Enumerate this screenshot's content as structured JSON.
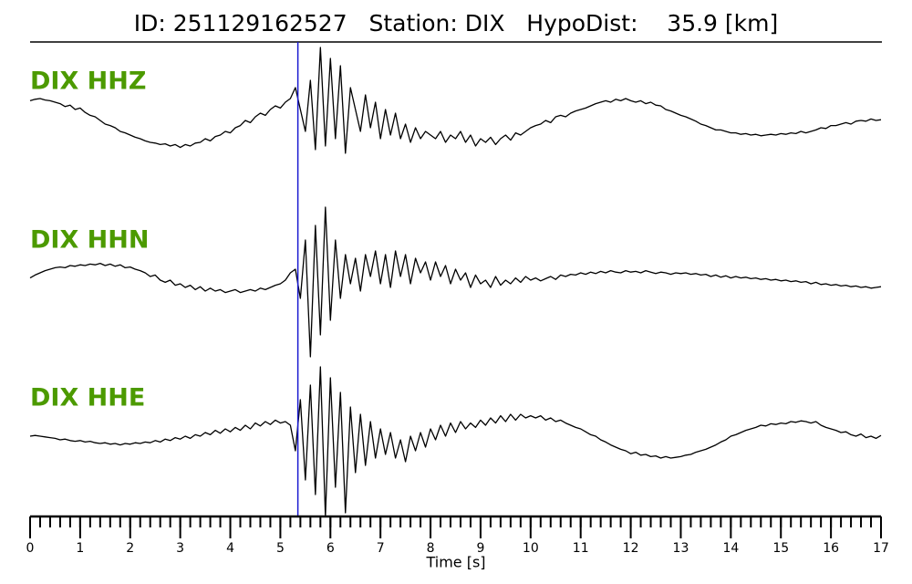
{
  "chart_data": {
    "type": "line",
    "title": "ID: 251129162527   Station: DIX   HypoDist:    35.9 [km]",
    "xlabel": "Time [s]",
    "xlim": [
      0,
      17
    ],
    "xticks": [
      0,
      1,
      2,
      3,
      4,
      5,
      6,
      7,
      8,
      9,
      10,
      11,
      12,
      13,
      14,
      15,
      16,
      17
    ],
    "xminor": 0.2,
    "ylim": [
      -1.2,
      1.2
    ],
    "label_color": "#4c9a00",
    "picks": [
      {
        "x": 5.35,
        "color": "#1a1ad0"
      }
    ],
    "x": [
      0,
      0.1,
      0.2,
      0.3,
      0.4,
      0.5,
      0.6,
      0.7,
      0.8,
      0.9,
      1,
      1.1,
      1.2,
      1.3,
      1.4,
      1.5,
      1.6,
      1.7,
      1.8,
      1.9,
      2,
      2.1,
      2.2,
      2.3,
      2.4,
      2.5,
      2.6,
      2.7,
      2.8,
      2.9,
      3,
      3.1,
      3.2,
      3.3,
      3.4,
      3.5,
      3.6,
      3.7,
      3.8,
      3.9,
      4,
      4.1,
      4.2,
      4.3,
      4.4,
      4.5,
      4.6,
      4.7,
      4.8,
      4.9,
      5,
      5.1,
      5.2,
      5.3,
      5.4,
      5.5,
      5.6,
      5.7,
      5.8,
      5.9,
      6,
      6.1,
      6.2,
      6.3,
      6.4,
      6.5,
      6.6,
      6.7,
      6.8,
      6.9,
      7,
      7.1,
      7.2,
      7.3,
      7.4,
      7.5,
      7.6,
      7.7,
      7.8,
      7.9,
      8,
      8.1,
      8.2,
      8.3,
      8.4,
      8.5,
      8.6,
      8.7,
      8.8,
      8.9,
      9,
      9.1,
      9.2,
      9.3,
      9.4,
      9.5,
      9.6,
      9.7,
      9.8,
      9.9,
      10,
      10.1,
      10.2,
      10.3,
      10.4,
      10.5,
      10.6,
      10.7,
      10.8,
      10.9,
      11,
      11.1,
      11.2,
      11.3,
      11.4,
      11.5,
      11.6,
      11.7,
      11.8,
      11.9,
      12,
      12.1,
      12.2,
      12.3,
      12.4,
      12.5,
      12.6,
      12.7,
      12.8,
      12.9,
      13,
      13.1,
      13.2,
      13.3,
      13.4,
      13.5,
      13.6,
      13.7,
      13.8,
      13.9,
      14,
      14.1,
      14.2,
      14.3,
      14.4,
      14.5,
      14.6,
      14.7,
      14.8,
      14.9,
      15,
      15.1,
      15.2,
      15.3,
      15.4,
      15.5,
      15.6,
      15.7,
      15.8,
      15.9,
      16,
      16.1,
      16.2,
      16.3,
      16.4,
      16.5,
      16.6,
      16.7,
      16.8,
      16.9,
      17
    ],
    "series": [
      {
        "name": "DIX HHZ",
        "color": "#000000",
        "values": [
          0.22,
          0.24,
          0.25,
          0.23,
          0.22,
          0.2,
          0.18,
          0.14,
          0.16,
          0.1,
          0.12,
          0.06,
          0.02,
          0.0,
          -0.05,
          -0.1,
          -0.12,
          -0.15,
          -0.2,
          -0.22,
          -0.25,
          -0.28,
          -0.3,
          -0.33,
          -0.35,
          -0.36,
          -0.38,
          -0.37,
          -0.4,
          -0.38,
          -0.42,
          -0.38,
          -0.4,
          -0.36,
          -0.35,
          -0.3,
          -0.33,
          -0.27,
          -0.25,
          -0.2,
          -0.22,
          -0.15,
          -0.12,
          -0.05,
          -0.08,
          0.0,
          0.05,
          0.02,
          0.1,
          0.15,
          0.12,
          0.2,
          0.25,
          0.4,
          0.1,
          -0.2,
          0.5,
          -0.45,
          0.95,
          -0.4,
          0.8,
          -0.3,
          0.7,
          -0.5,
          0.4,
          0.1,
          -0.2,
          0.3,
          -0.15,
          0.2,
          -0.3,
          0.1,
          -0.25,
          0.05,
          -0.3,
          -0.1,
          -0.35,
          -0.15,
          -0.3,
          -0.2,
          -0.25,
          -0.3,
          -0.2,
          -0.35,
          -0.25,
          -0.3,
          -0.2,
          -0.35,
          -0.25,
          -0.4,
          -0.3,
          -0.35,
          -0.28,
          -0.38,
          -0.3,
          -0.25,
          -0.32,
          -0.22,
          -0.25,
          -0.2,
          -0.15,
          -0.12,
          -0.1,
          -0.05,
          -0.08,
          0.0,
          0.02,
          0.0,
          0.05,
          0.08,
          0.1,
          0.12,
          0.15,
          0.18,
          0.2,
          0.22,
          0.2,
          0.24,
          0.22,
          0.25,
          0.22,
          0.2,
          0.22,
          0.18,
          0.2,
          0.16,
          0.15,
          0.1,
          0.08,
          0.05,
          0.02,
          0.0,
          -0.03,
          -0.06,
          -0.1,
          -0.12,
          -0.15,
          -0.18,
          -0.18,
          -0.2,
          -0.22,
          -0.22,
          -0.24,
          -0.23,
          -0.25,
          -0.24,
          -0.26,
          -0.25,
          -0.24,
          -0.25,
          -0.23,
          -0.24,
          -0.22,
          -0.23,
          -0.2,
          -0.22,
          -0.2,
          -0.18,
          -0.15,
          -0.16,
          -0.12,
          -0.12,
          -0.1,
          -0.08,
          -0.1,
          -0.06,
          -0.05,
          -0.06,
          -0.03,
          -0.05,
          -0.04
        ]
      },
      {
        "name": "DIX HHN",
        "color": "#000000",
        "values": [
          -0.02,
          0.02,
          0.05,
          0.08,
          0.1,
          0.12,
          0.13,
          0.12,
          0.15,
          0.14,
          0.16,
          0.15,
          0.17,
          0.16,
          0.18,
          0.15,
          0.17,
          0.14,
          0.16,
          0.12,
          0.13,
          0.1,
          0.08,
          0.05,
          0.0,
          0.02,
          -0.05,
          -0.08,
          -0.05,
          -0.12,
          -0.1,
          -0.15,
          -0.12,
          -0.18,
          -0.14,
          -0.2,
          -0.16,
          -0.2,
          -0.18,
          -0.22,
          -0.2,
          -0.18,
          -0.22,
          -0.2,
          -0.18,
          -0.2,
          -0.16,
          -0.18,
          -0.15,
          -0.12,
          -0.1,
          -0.05,
          0.05,
          0.1,
          -0.3,
          0.5,
          -1.1,
          0.7,
          -0.8,
          0.95,
          -0.6,
          0.5,
          -0.3,
          0.3,
          -0.1,
          0.25,
          -0.2,
          0.3,
          0.0,
          0.35,
          -0.1,
          0.3,
          -0.15,
          0.35,
          0.0,
          0.3,
          -0.1,
          0.25,
          0.05,
          0.2,
          -0.05,
          0.2,
          0.0,
          0.15,
          -0.1,
          0.1,
          -0.05,
          0.05,
          -0.15,
          0.02,
          -0.1,
          -0.05,
          -0.15,
          0.0,
          -0.12,
          -0.05,
          -0.1,
          -0.02,
          -0.08,
          0.0,
          -0.05,
          -0.02,
          -0.06,
          -0.03,
          0.0,
          -0.04,
          0.02,
          0.0,
          0.03,
          0.02,
          0.05,
          0.03,
          0.06,
          0.04,
          0.07,
          0.05,
          0.08,
          0.06,
          0.05,
          0.08,
          0.06,
          0.07,
          0.05,
          0.08,
          0.06,
          0.04,
          0.06,
          0.05,
          0.03,
          0.05,
          0.04,
          0.05,
          0.03,
          0.04,
          0.02,
          0.03,
          0.0,
          0.02,
          -0.01,
          0.01,
          -0.02,
          0.0,
          -0.02,
          -0.01,
          -0.03,
          -0.02,
          -0.04,
          -0.03,
          -0.05,
          -0.04,
          -0.06,
          -0.05,
          -0.07,
          -0.06,
          -0.08,
          -0.07,
          -0.1,
          -0.08,
          -0.11,
          -0.1,
          -0.12,
          -0.11,
          -0.13,
          -0.12,
          -0.14,
          -0.13,
          -0.15,
          -0.14,
          -0.16,
          -0.15,
          -0.14
        ]
      },
      {
        "name": "DIX HHE",
        "color": "#000000",
        "values": [
          0.0,
          0.01,
          0.0,
          -0.01,
          -0.02,
          -0.03,
          -0.05,
          -0.04,
          -0.06,
          -0.07,
          -0.06,
          -0.08,
          -0.07,
          -0.09,
          -0.1,
          -0.09,
          -0.11,
          -0.1,
          -0.12,
          -0.1,
          -0.11,
          -0.09,
          -0.1,
          -0.08,
          -0.09,
          -0.06,
          -0.08,
          -0.04,
          -0.06,
          -0.02,
          -0.04,
          0.0,
          -0.03,
          0.02,
          0.0,
          0.05,
          0.02,
          0.08,
          0.04,
          0.1,
          0.06,
          0.12,
          0.08,
          0.15,
          0.1,
          0.18,
          0.14,
          0.2,
          0.16,
          0.22,
          0.18,
          0.2,
          0.15,
          -0.2,
          0.5,
          -0.6,
          0.7,
          -0.8,
          0.95,
          -1.1,
          0.8,
          -0.7,
          0.6,
          -1.05,
          0.4,
          -0.5,
          0.3,
          -0.4,
          0.2,
          -0.3,
          0.1,
          -0.25,
          0.05,
          -0.3,
          -0.05,
          -0.35,
          0.0,
          -0.2,
          0.05,
          -0.15,
          0.1,
          -0.05,
          0.15,
          0.0,
          0.18,
          0.05,
          0.2,
          0.1,
          0.18,
          0.12,
          0.22,
          0.15,
          0.25,
          0.18,
          0.28,
          0.2,
          0.3,
          0.22,
          0.3,
          0.25,
          0.28,
          0.25,
          0.28,
          0.22,
          0.25,
          0.2,
          0.22,
          0.18,
          0.15,
          0.12,
          0.1,
          0.06,
          0.02,
          0.0,
          -0.05,
          -0.08,
          -0.12,
          -0.15,
          -0.18,
          -0.2,
          -0.24,
          -0.22,
          -0.26,
          -0.25,
          -0.28,
          -0.27,
          -0.3,
          -0.28,
          -0.3,
          -0.29,
          -0.28,
          -0.26,
          -0.25,
          -0.22,
          -0.2,
          -0.18,
          -0.15,
          -0.12,
          -0.08,
          -0.05,
          0.0,
          0.02,
          0.05,
          0.08,
          0.1,
          0.12,
          0.15,
          0.14,
          0.17,
          0.16,
          0.18,
          0.17,
          0.2,
          0.19,
          0.21,
          0.2,
          0.18,
          0.2,
          0.15,
          0.12,
          0.1,
          0.08,
          0.05,
          0.06,
          0.02,
          0.0,
          0.03,
          -0.02,
          0.0,
          -0.03,
          0.01
        ]
      }
    ]
  }
}
